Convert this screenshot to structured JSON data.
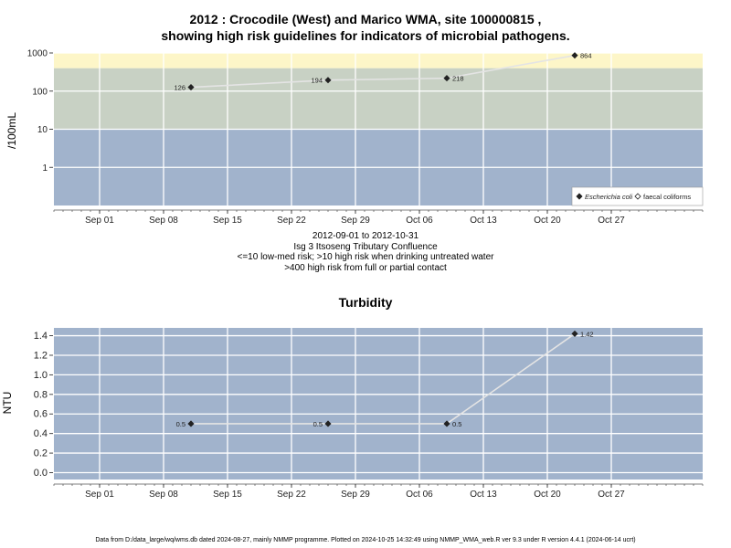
{
  "chart_data": [
    {
      "type": "line",
      "title_line1": "2012 : Crocodile (West) and Marico WMA, site 100000815 ,",
      "title_line2": "showing high risk guidelines for indicators of microbial pathogens.",
      "ylabel": "/100mL",
      "yscale": "log",
      "ylim": [
        0.1,
        1000
      ],
      "yticks": [
        {
          "value": 1,
          "label": "1"
        },
        {
          "value": 10,
          "label": "10"
        },
        {
          "value": 100,
          "label": "100"
        },
        {
          "value": 1000,
          "label": "1000"
        }
      ],
      "xlim": [
        "2012-08-27",
        "2012-11-06"
      ],
      "xticks": [
        {
          "date": "2012-09-01",
          "label": "Sep 01"
        },
        {
          "date": "2012-09-08",
          "label": "Sep 08"
        },
        {
          "date": "2012-09-15",
          "label": "Sep 15"
        },
        {
          "date": "2012-09-22",
          "label": "Sep 22"
        },
        {
          "date": "2012-09-29",
          "label": "Sep 29"
        },
        {
          "date": "2012-10-06",
          "label": "Oct 06"
        },
        {
          "date": "2012-10-13",
          "label": "Oct 13"
        },
        {
          "date": "2012-10-20",
          "label": "Oct 20"
        },
        {
          "date": "2012-10-27",
          "label": "Oct 27"
        }
      ],
      "bands": [
        {
          "from": 0.1,
          "to": 10,
          "color": "#a1b3cc"
        },
        {
          "from": 10,
          "to": 400,
          "color": "#c8d1c4"
        },
        {
          "from": 400,
          "to": 1000,
          "color": "#fdf6c8"
        }
      ],
      "grid": true,
      "series": [
        {
          "name": "Escherichia coli",
          "marker": "filled-diamond",
          "points": [
            {
              "x": "2012-09-11",
              "y": 126,
              "label": "126",
              "label_side": "left"
            },
            {
              "x": "2012-09-26",
              "y": 194,
              "label": "194",
              "label_side": "left"
            },
            {
              "x": "2012-10-09",
              "y": 218,
              "label": "218",
              "label_side": "right"
            },
            {
              "x": "2012-10-23",
              "y": 864,
              "label": "864",
              "label_side": "right"
            }
          ]
        }
      ],
      "legend": {
        "position": "bottom-right",
        "entries": [
          {
            "label": "Escherichia coli",
            "marker": "filled-diamond",
            "italic": true
          },
          {
            "label": "faecal coliforms",
            "marker": "open-diamond",
            "italic": false
          }
        ]
      },
      "subtitle_lines": [
        "2012-09-01 to 2012-10-31",
        "Isg 3 Itsoseng Tributary Confluence",
        "<=10 low-med risk; >10 high risk when drinking untreated water",
        ">400 high risk from full or partial contact"
      ]
    },
    {
      "type": "line",
      "title": "Turbidity",
      "ylabel": "NTU",
      "ylim": [
        -0.07,
        1.48
      ],
      "yticks": [
        {
          "value": 0.0,
          "label": "0.0"
        },
        {
          "value": 0.2,
          "label": "0.2"
        },
        {
          "value": 0.4,
          "label": "0.4"
        },
        {
          "value": 0.6,
          "label": "0.6"
        },
        {
          "value": 0.8,
          "label": "0.8"
        },
        {
          "value": 1.0,
          "label": "1.0"
        },
        {
          "value": 1.2,
          "label": "1.2"
        },
        {
          "value": 1.4,
          "label": "1.4"
        }
      ],
      "xlim": [
        "2012-08-27",
        "2012-11-06"
      ],
      "xticks": [
        {
          "date": "2012-09-01",
          "label": "Sep 01"
        },
        {
          "date": "2012-09-08",
          "label": "Sep 08"
        },
        {
          "date": "2012-09-15",
          "label": "Sep 15"
        },
        {
          "date": "2012-09-22",
          "label": "Sep 22"
        },
        {
          "date": "2012-09-29",
          "label": "Sep 29"
        },
        {
          "date": "2012-10-06",
          "label": "Oct 06"
        },
        {
          "date": "2012-10-13",
          "label": "Oct 13"
        },
        {
          "date": "2012-10-20",
          "label": "Oct 20"
        },
        {
          "date": "2012-10-27",
          "label": "Oct 27"
        }
      ],
      "background": "#a1b3cc",
      "grid": true,
      "series": [
        {
          "name": "",
          "marker": "filled-diamond",
          "points": [
            {
              "x": "2012-09-11",
              "y": 0.5,
              "label": "0.5",
              "label_side": "left"
            },
            {
              "x": "2012-09-26",
              "y": 0.5,
              "label": "0.5",
              "label_side": "left"
            },
            {
              "x": "2012-10-09",
              "y": 0.5,
              "label": "0.5",
              "label_side": "right"
            },
            {
              "x": "2012-10-23",
              "y": 1.42,
              "label": "1.42",
              "label_side": "right"
            }
          ]
        }
      ]
    }
  ],
  "footer": "Data from D:/data_large/wq/wms.db dated 2024-08-27, mainly NMMP programme. Plotted on 2024-10-25 14:32:49 using NMMP_WMA_web.R ver 9.3 under R version 4.4.1 (2024-06-14 ucrt)"
}
